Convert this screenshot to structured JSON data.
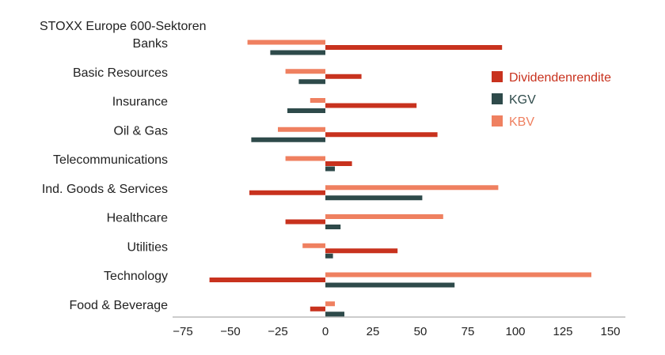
{
  "chart_data": {
    "type": "bar",
    "orientation": "horizontal",
    "title": "STOXX Europe 600-Sektoren",
    "categories": [
      "Banks",
      "Basic Resources",
      "Insurance",
      "Oil & Gas",
      "Telecommunications",
      "Ind. Goods & Services",
      "Healthcare",
      "Utilities",
      "Technology",
      "Food & Beverage"
    ],
    "series": [
      {
        "name": "Dividendenrendite",
        "color": "#c8321e",
        "values": [
          93,
          19,
          48,
          59,
          14,
          -40,
          -21,
          38,
          -61,
          -8
        ]
      },
      {
        "name": "KGV",
        "color": "#2e4a4a",
        "values": [
          -29,
          -14,
          -20,
          -39,
          5,
          51,
          8,
          4,
          68,
          10
        ]
      },
      {
        "name": "KBV",
        "color": "#ef8060",
        "values": [
          -41,
          -21,
          -8,
          -25,
          -21,
          91,
          62,
          -12,
          140,
          5
        ]
      }
    ],
    "xlim": [
      -75,
      150
    ],
    "xticks": [
      -75,
      -50,
      -25,
      0,
      25,
      50,
      75,
      100,
      125,
      150
    ],
    "xtick_labels": [
      "−75",
      "−50",
      "−25",
      "0",
      "25",
      "50",
      "75",
      "100",
      "125",
      "150"
    ],
    "legend_position": "right",
    "grid": false
  }
}
